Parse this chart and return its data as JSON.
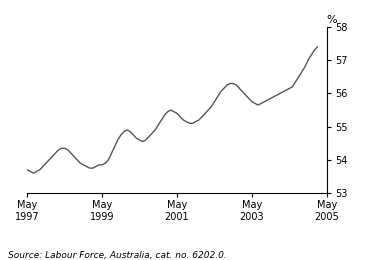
{
  "title": "",
  "ylabel": "%",
  "source": "Source: Labour Force, Australia, cat. no. 6202.0.",
  "ylim": [
    53,
    58
  ],
  "yticks": [
    53,
    54,
    55,
    56,
    57,
    58
  ],
  "line_color": "#555555",
  "line_width": 1.0,
  "x_tick_positions": [
    0,
    24,
    48,
    72,
    96
  ],
  "x_tick_labels": [
    "May\n1997",
    "May\n1999",
    "May\n2001",
    "May\n2003",
    "May\n2005"
  ],
  "values": [
    53.7,
    53.65,
    53.6,
    53.65,
    53.7,
    53.8,
    53.9,
    54.0,
    54.1,
    54.2,
    54.3,
    54.35,
    54.35,
    54.3,
    54.2,
    54.1,
    54.0,
    53.9,
    53.85,
    53.8,
    53.75,
    53.75,
    53.8,
    53.85,
    53.85,
    53.9,
    54.0,
    54.2,
    54.4,
    54.6,
    54.75,
    54.85,
    54.9,
    54.85,
    54.75,
    54.65,
    54.6,
    54.55,
    54.6,
    54.7,
    54.8,
    54.9,
    55.05,
    55.2,
    55.35,
    55.45,
    55.5,
    55.45,
    55.4,
    55.3,
    55.2,
    55.15,
    55.1,
    55.1,
    55.15,
    55.2,
    55.3,
    55.4,
    55.5,
    55.6,
    55.75,
    55.9,
    56.05,
    56.15,
    56.25,
    56.3,
    56.3,
    56.25,
    56.15,
    56.05,
    55.95,
    55.85,
    55.75,
    55.7,
    55.65,
    55.7,
    55.75,
    55.8,
    55.85,
    55.9,
    55.95,
    56.0,
    56.05,
    56.1,
    56.15,
    56.2,
    56.35,
    56.5,
    56.65,
    56.8,
    57.0,
    57.15,
    57.3,
    57.4
  ]
}
